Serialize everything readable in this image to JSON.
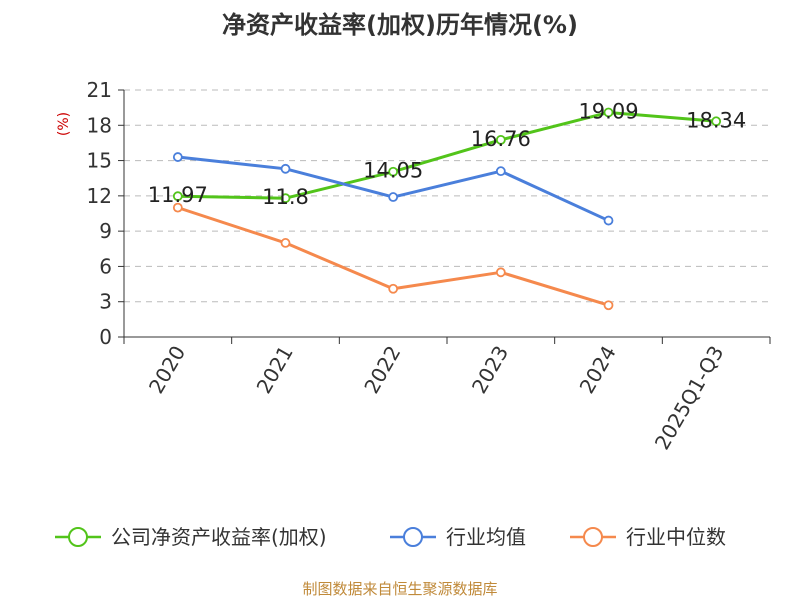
{
  "chart_data": {
    "type": "line",
    "title": "净资产收益率(加权)历年情况(%)",
    "ylabel": "(%)",
    "categories": [
      "2020",
      "2021",
      "2022",
      "2023",
      "2024",
      "2025Q1-Q3"
    ],
    "ylim": [
      0,
      21
    ],
    "yticks": [
      0,
      3,
      6,
      9,
      12,
      15,
      18,
      21
    ],
    "grid": true,
    "legend_position": "bottom",
    "series": [
      {
        "name": "公司净资产收益率(加权)",
        "color": "#52c41a",
        "values": [
          11.97,
          11.8,
          14.05,
          16.76,
          19.09,
          18.34
        ],
        "labels": [
          "11.97",
          "11.8",
          "14.05",
          "16.76",
          "19.09",
          "18.34"
        ]
      },
      {
        "name": "行业均值",
        "color": "#4a7fdb",
        "values": [
          15.3,
          14.3,
          11.9,
          14.1,
          9.9,
          null
        ]
      },
      {
        "name": "行业中位数",
        "color": "#f5894d",
        "values": [
          11.0,
          8.0,
          4.1,
          5.5,
          2.7,
          null
        ]
      }
    ]
  },
  "source_text": "制图数据来自恒生聚源数据库"
}
